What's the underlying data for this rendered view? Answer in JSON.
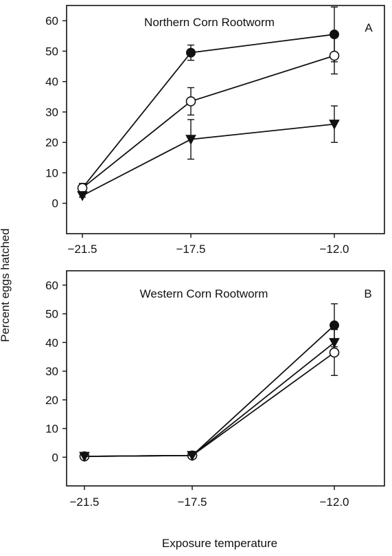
{
  "figure": {
    "ylabel": "Percent eggs hatched",
    "xlabel": "Exposure temperature"
  },
  "chart_data": [
    {
      "type": "line",
      "panel": "A",
      "title": "Northern Corn Rootworm",
      "x": [
        "-21.5",
        "-17.5",
        "-12.0"
      ],
      "xtick_labels": [
        "−21.5",
        "−17.5",
        "−12.0"
      ],
      "yticks": [
        "0",
        "10",
        "20",
        "30",
        "40",
        "50",
        "60"
      ],
      "ylim": [
        -10,
        65
      ],
      "grid": false,
      "series": [
        {
          "marker": "filled-circle",
          "values": [
            5,
            49.5,
            55.5
          ],
          "err": [
            1.5,
            2.5,
            9
          ]
        },
        {
          "marker": "open-circle",
          "values": [
            5,
            33.5,
            48.5
          ],
          "err": [
            1.5,
            4.5,
            6
          ]
        },
        {
          "marker": "filled-triangle-down",
          "values": [
            2.5,
            21,
            26
          ],
          "err": [
            0.5,
            6.5,
            6
          ]
        }
      ]
    },
    {
      "type": "line",
      "panel": "B",
      "title": "Western Corn Rootworm",
      "x": [
        "-21.5",
        "-17.5",
        "-12.0"
      ],
      "xtick_labels": [
        "−21.5",
        "−17.5",
        "−12.0"
      ],
      "yticks": [
        "0",
        "10",
        "20",
        "30",
        "40",
        "50",
        "60"
      ],
      "ylim": [
        -10,
        65
      ],
      "grid": false,
      "series": [
        {
          "marker": "filled-circle",
          "values": [
            0.3,
            0.6,
            46
          ],
          "err": [
            0,
            0,
            7.5
          ]
        },
        {
          "marker": "open-circle",
          "values": [
            0.3,
            0.6,
            36.5
          ],
          "err": [
            0,
            0,
            8
          ]
        },
        {
          "marker": "filled-triangle-down",
          "values": [
            0.3,
            0.6,
            40
          ],
          "err": [
            0,
            0,
            0
          ]
        }
      ]
    }
  ]
}
